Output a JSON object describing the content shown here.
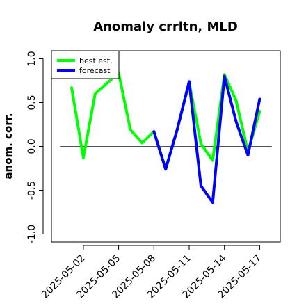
{
  "chart_data": {
    "type": "line",
    "title": "Anomaly crrltn, MLD",
    "xlabel": "",
    "ylabel": "anom. corr.",
    "ylim": [
      -1.0,
      1.0
    ],
    "yticks": [
      "-1.0",
      "-0.5",
      "0.0",
      "0.5",
      "1.0"
    ],
    "ytick_values": [
      -1.0,
      -0.5,
      0.0,
      0.5,
      1.0
    ],
    "x": [
      "2025-05-01",
      "2025-05-02",
      "2025-05-03",
      "2025-05-04",
      "2025-05-05",
      "2025-05-06",
      "2025-05-07",
      "2025-05-08",
      "2025-05-09",
      "2025-05-10",
      "2025-05-11",
      "2025-05-12",
      "2025-05-13",
      "2025-05-14",
      "2025-05-15",
      "2025-05-16",
      "2025-05-17"
    ],
    "xticks": [
      "2025-05-02",
      "2025-05-05",
      "2025-05-08",
      "2025-05-11",
      "2025-05-14",
      "2025-05-17"
    ],
    "xtick_index": [
      1,
      4,
      7,
      10,
      13,
      16
    ],
    "highlighted_xtick": "2025-05-08",
    "highlight_color": "#228b22",
    "reference_line": 0.0,
    "grid": false,
    "legend_position": "top-left",
    "series": [
      {
        "name": "best est.",
        "color": "#00ff00",
        "values": [
          0.67,
          -0.13,
          0.6,
          0.72,
          0.84,
          0.19,
          0.04,
          0.17,
          -0.26,
          0.2,
          0.73,
          0.03,
          -0.16,
          0.82,
          0.52,
          -0.06,
          0.4
        ]
      },
      {
        "name": "forecast",
        "color": "#0000ff",
        "values": [
          null,
          null,
          null,
          null,
          null,
          null,
          null,
          0.17,
          -0.26,
          0.2,
          0.74,
          -0.45,
          -0.64,
          0.8,
          0.28,
          -0.1,
          0.54
        ]
      }
    ]
  }
}
